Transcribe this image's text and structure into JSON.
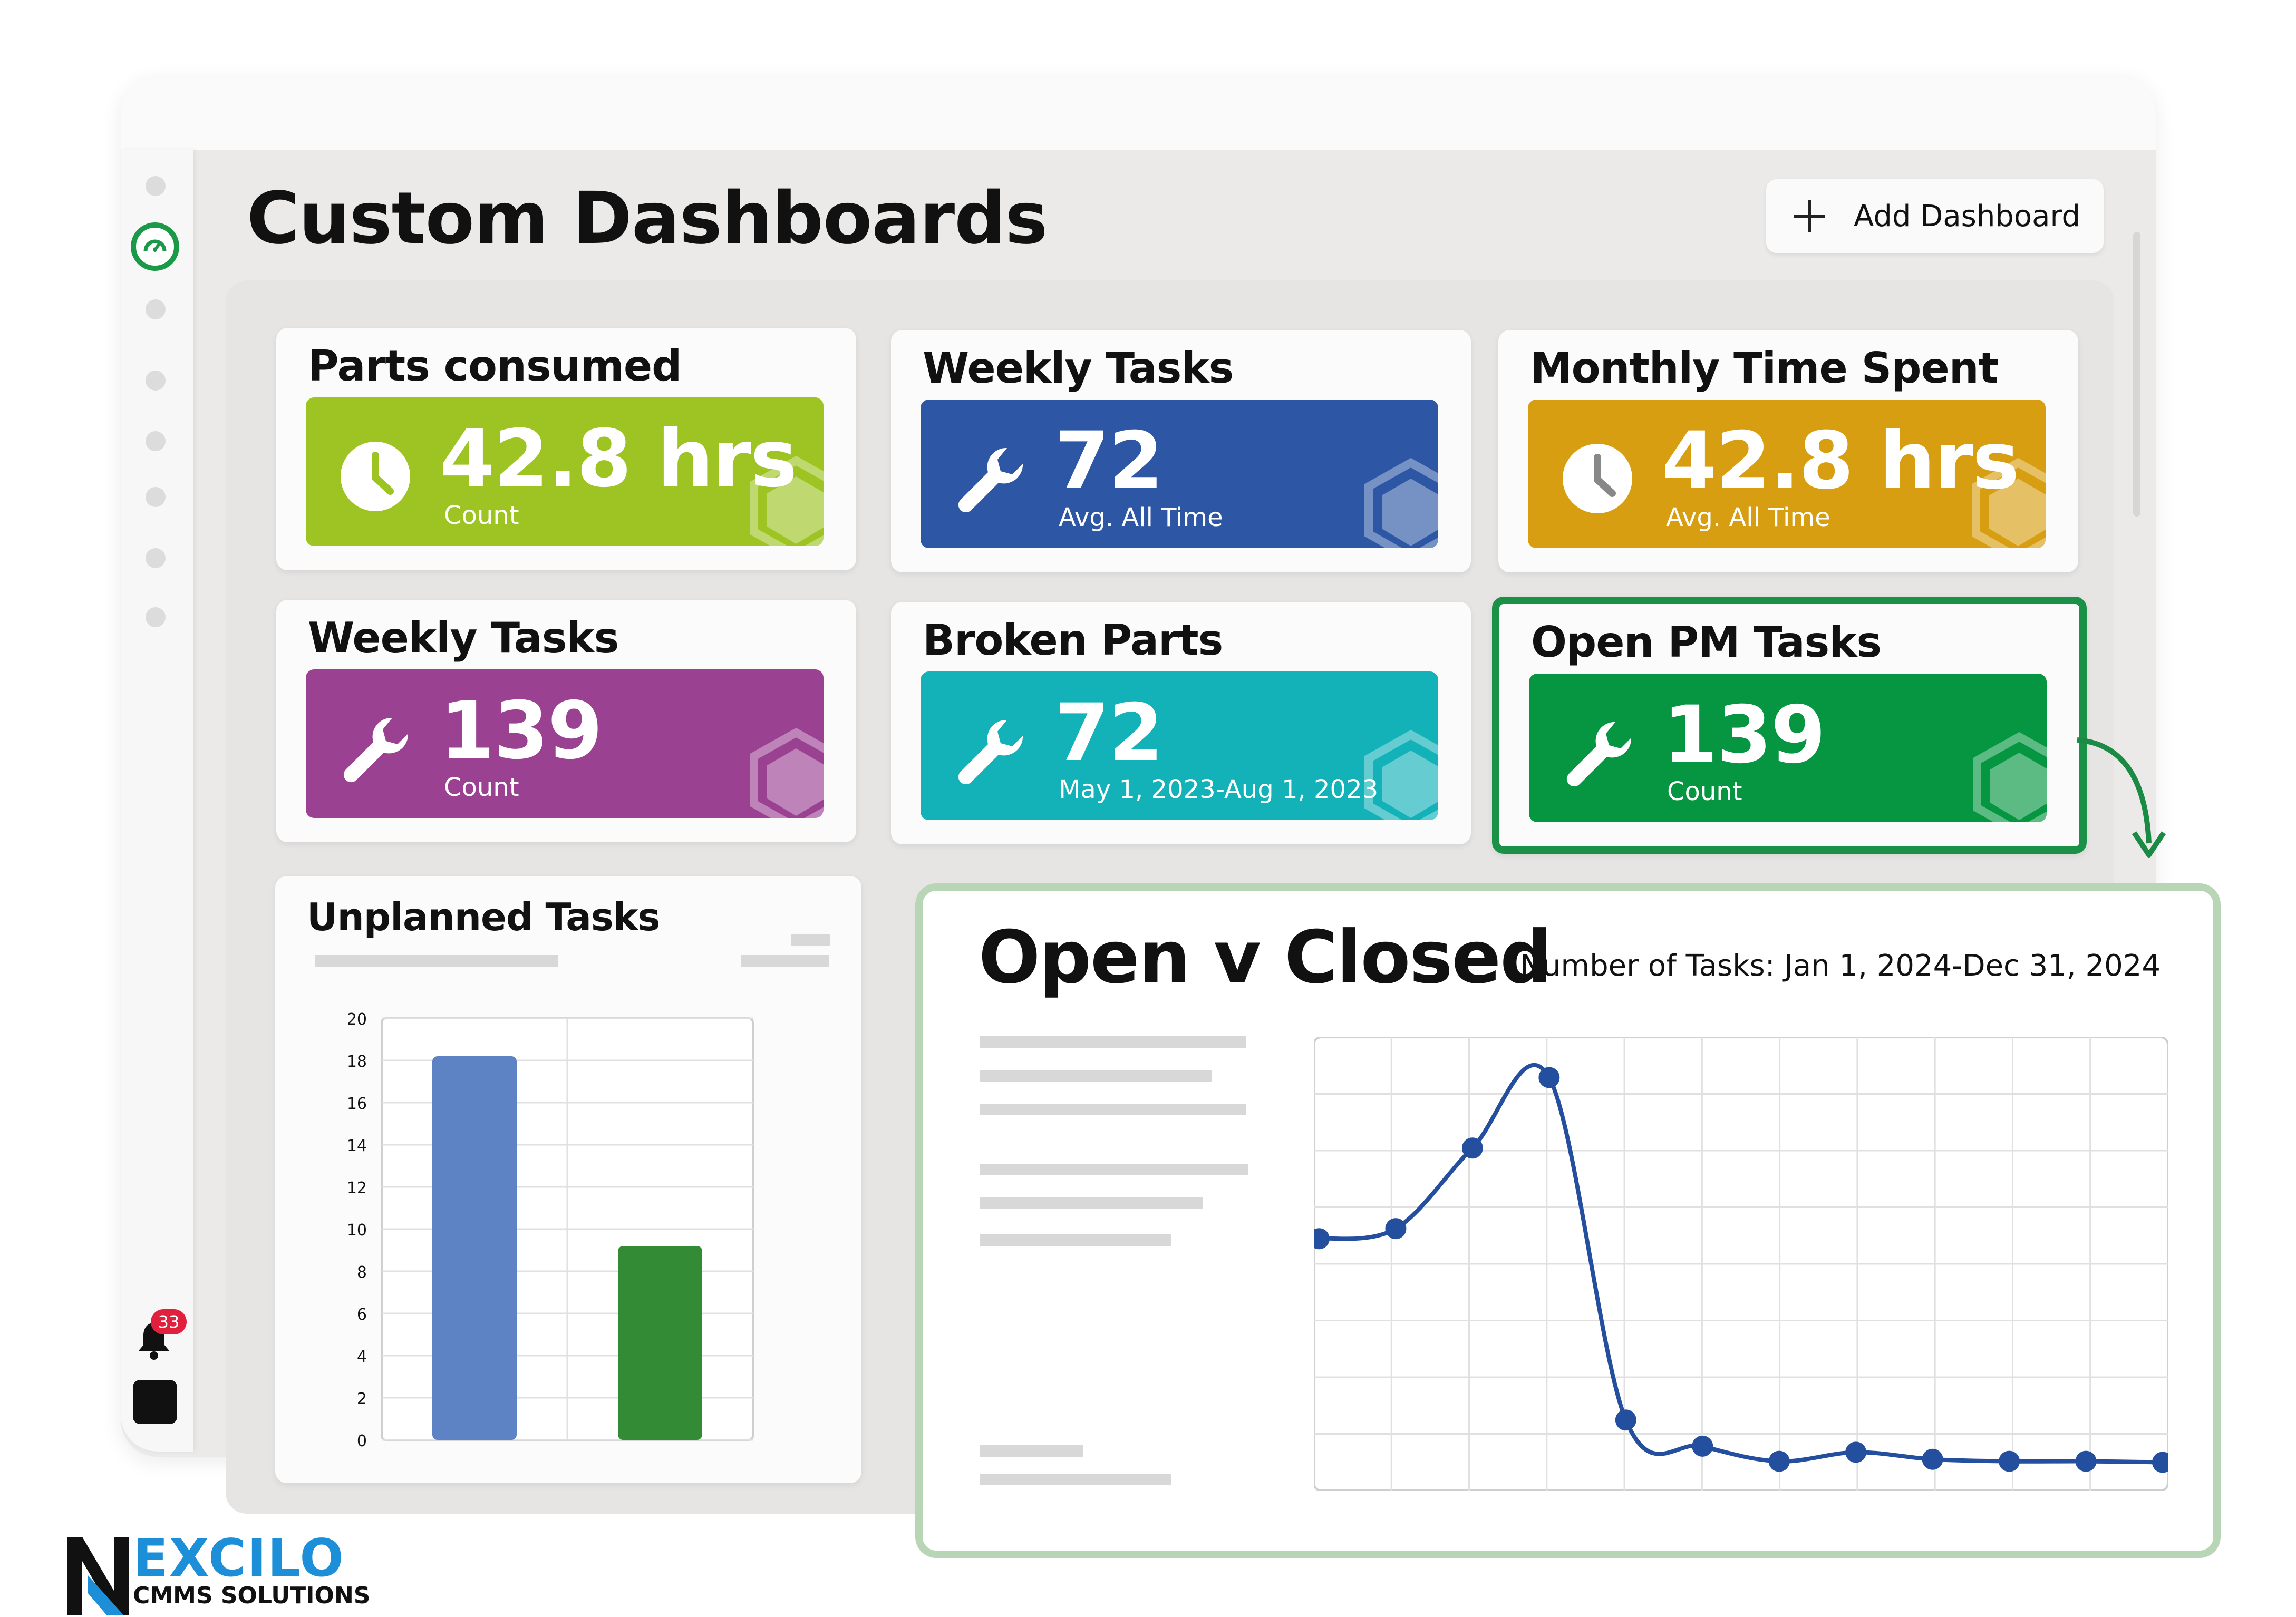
{
  "header": {
    "title": "Custom Dashboards",
    "add_button": "Add Dashboard"
  },
  "sidebar": {
    "active_icon": "dashboard-gauge-icon",
    "notification_count": "33"
  },
  "cards": [
    {
      "title": "Parts consumed",
      "value": "42.8 hrs",
      "sub": "Count",
      "icon": "clock-icon",
      "color": "#9dc423"
    },
    {
      "title": "Weekly Tasks",
      "value": "72",
      "sub": "Avg. All Time",
      "icon": "wrench-icon",
      "color": "#2d56a5"
    },
    {
      "title": "Monthly Time Spent",
      "value": "42.8 hrs",
      "sub": "Avg. All Time",
      "icon": "clock-icon",
      "color": "#d79e12"
    },
    {
      "title": "Weekly Tasks",
      "value": "139",
      "sub": "Count",
      "icon": "wrench-icon",
      "color": "#9b4192"
    },
    {
      "title": "Broken Parts",
      "value": "72",
      "sub": "May 1, 2023-Aug 1, 2023",
      "icon": "wrench-icon",
      "color": "#13b2b8"
    },
    {
      "title": "Open PM Tasks",
      "value": "139",
      "sub": "Count",
      "icon": "wrench-icon",
      "color": "#069541"
    }
  ],
  "unplanned": {
    "title": "Unplanned Tasks"
  },
  "open_closed": {
    "title": "Open v Closed",
    "subtitle": "Number of Tasks: Jan 1, 2024-Dec 31, 2024"
  },
  "logo": {
    "name": "EXCILO",
    "tagline": "CMMS SOLUTIONS"
  },
  "chart_data": [
    {
      "type": "bar",
      "title": "Unplanned Tasks",
      "categories": [
        "",
        ""
      ],
      "values": [
        18.2,
        9.2
      ],
      "colors": [
        "#5e83c4",
        "#348b35"
      ],
      "y_ticks": [
        "0",
        "2",
        "4",
        "6",
        "8",
        "10",
        "12",
        "14",
        "16",
        "18",
        "20"
      ],
      "ylim": [
        0,
        20
      ],
      "grid": true
    },
    {
      "type": "line",
      "title": "Open v Closed",
      "x": [
        1,
        2,
        3,
        4,
        5,
        6,
        7,
        8,
        9,
        10,
        11,
        12
      ],
      "y": [
        30,
        31,
        39,
        46,
        12,
        9.4,
        7.9,
        8.8,
        8.1,
        7.9,
        7.9,
        7.8
      ],
      "ylim": [
        5,
        50
      ],
      "color": "#244f9e",
      "grid": true
    }
  ]
}
